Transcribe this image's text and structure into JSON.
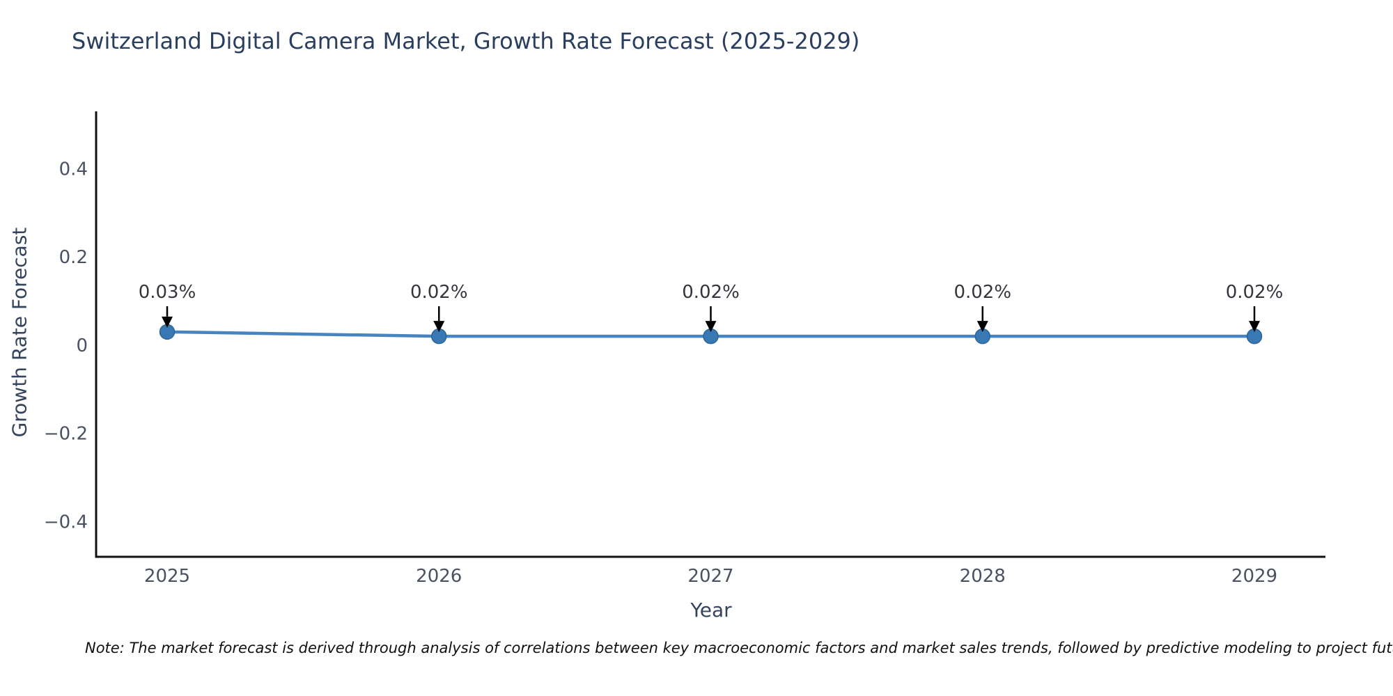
{
  "title": "Switzerland Digital Camera Market, Growth Rate Forecast (2025-2029)",
  "note": "Note: The market forecast is derived through analysis of correlations between key macroeconomic factors and market sales trends, followed by predictive modeling to project future sa",
  "colors": {
    "title": "#2a3f5f",
    "axis_line": "#111111",
    "tick_label": "#4a5160",
    "axis_title": "#33445c",
    "line": "#4884bf",
    "marker_fill": "#3879b4",
    "marker_edge": "#2c6496",
    "annotation_text": "#33363d",
    "annotation_arrow": "#000000"
  },
  "chart_data": {
    "type": "line",
    "title": "Switzerland Digital Camera Market, Growth Rate Forecast (2025-2029)",
    "x": [
      2025,
      2026,
      2027,
      2028,
      2029
    ],
    "values": [
      0.03,
      0.02,
      0.02,
      0.02,
      0.02
    ],
    "point_labels": [
      "0.03%",
      "0.02%",
      "0.02%",
      "0.02%",
      "0.02%"
    ],
    "xlabel": "Year",
    "ylabel": "Growth Rate Forecast",
    "ylim": [
      -0.48,
      0.53
    ],
    "yticks": [
      0.4,
      0.2,
      0,
      -0.2,
      -0.4
    ],
    "ytick_labels": [
      "0.4",
      "0.2",
      "0",
      "−0.2",
      "−0.4"
    ],
    "xtick_labels": [
      "2025",
      "2026",
      "2027",
      "2028",
      "2029"
    ],
    "grid": false,
    "legend": false
  }
}
